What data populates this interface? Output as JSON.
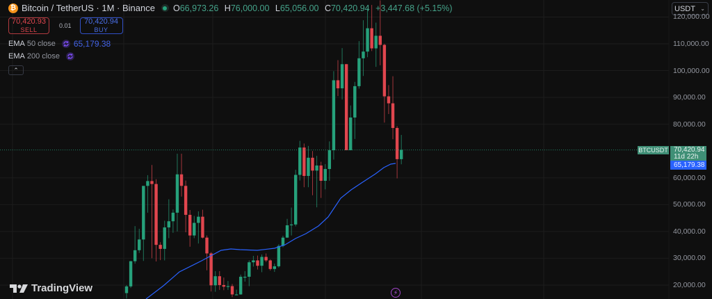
{
  "header": {
    "symbol_title": "Bitcoin / TetherUS · 1M · Binance",
    "coin_icon": "bitcoin-icon",
    "ohlc": {
      "open_label": "O",
      "open": "66,973.26",
      "high_label": "H",
      "high": "76,000.00",
      "low_label": "L",
      "low": "65,056.00",
      "close_label": "C",
      "close": "70,420.94",
      "change": "+3,447.68 (+5.15%)"
    }
  },
  "trade": {
    "sell_price": "70,420.93",
    "sell_label": "SELL",
    "spread": "0.01",
    "buy_price": "70,420.94",
    "buy_label": "BUY"
  },
  "indicators": [
    {
      "name": "EMA",
      "args": "50 close",
      "value": "65,179.38",
      "color": "#2962ff"
    },
    {
      "name": "EMA",
      "args": "200 close",
      "value": ""
    }
  ],
  "collapse_label": "^",
  "currency_select": {
    "value": "USDT"
  },
  "price_axis": {
    "labels": [
      {
        "text": "120,000.00",
        "price": 120000
      },
      {
        "text": "110,000.00",
        "price": 110000
      },
      {
        "text": "100,000.00",
        "price": 100000
      },
      {
        "text": "90,000.00",
        "price": 90000
      },
      {
        "text": "80,000.00",
        "price": 80000
      },
      {
        "text": "60,000.00",
        "price": 60000
      },
      {
        "text": "50,000.00",
        "price": 50000
      },
      {
        "text": "40,000.00",
        "price": 40000
      },
      {
        "text": "30,000.00",
        "price": 30000
      },
      {
        "text": "20,000.00",
        "price": 20000
      }
    ],
    "symbol_tag": "BTCUSDT",
    "last_price": "70,420.94",
    "countdown": "11d 22h",
    "ema_price": "65,179.38"
  },
  "branding": {
    "logo_text": "TradingView"
  },
  "colors": {
    "up": "#26a17b",
    "down": "#e0464e",
    "ema50": "#2962ff",
    "background": "#0f0f0f",
    "grid": "#1c1c1c"
  },
  "chart_data": {
    "type": "candlestick",
    "title": "Bitcoin / TetherUS · 1M · Binance",
    "interval": "1M",
    "ylabel": "USDT",
    "ylim": [
      15000,
      125000
    ],
    "grid": true,
    "last": {
      "open": 66973.26,
      "high": 76000.0,
      "low": 65056.0,
      "close": 70420.94,
      "change": 3447.68,
      "change_pct": 5.15
    },
    "ema50_last": 65179.38,
    "candles": [
      [
        17000,
        20000,
        15000,
        19500
      ],
      [
        19500,
        29000,
        18900,
        28900
      ],
      [
        28900,
        42000,
        28000,
        33000
      ],
      [
        33000,
        41000,
        32000,
        37000
      ],
      [
        37000,
        48000,
        29000,
        57000
      ],
      [
        57000,
        61000,
        47000,
        58800
      ],
      [
        58800,
        64800,
        30000,
        57700
      ],
      [
        57700,
        59500,
        28800,
        35000
      ],
      [
        35000,
        36000,
        29300,
        33500
      ],
      [
        33500,
        44000,
        29200,
        41500
      ],
      [
        41500,
        52000,
        37500,
        43800
      ],
      [
        43800,
        48200,
        39500,
        47000
      ],
      [
        47000,
        69000,
        40000,
        61300
      ],
      [
        61300,
        69000,
        53000,
        57000
      ],
      [
        57000,
        59000,
        39700,
        46200
      ],
      [
        46200,
        48000,
        34300,
        38500
      ],
      [
        38500,
        45800,
        37500,
        43200
      ],
      [
        43200,
        47500,
        35500,
        45500
      ],
      [
        45500,
        48100,
        37400,
        37700
      ],
      [
        37700,
        38500,
        25500,
        31800
      ],
      [
        31800,
        32300,
        17600,
        19900
      ],
      [
        19900,
        25200,
        17500,
        23300
      ],
      [
        23300,
        25200,
        18200,
        20000
      ],
      [
        20000,
        22800,
        18100,
        19400
      ],
      [
        19400,
        21500,
        18200,
        19600
      ],
      [
        19600,
        20400,
        15500,
        16500
      ],
      [
        16500,
        18300,
        16300,
        16500
      ],
      [
        16500,
        23900,
        16400,
        23100
      ],
      [
        23100,
        25200,
        21300,
        23100
      ],
      [
        23100,
        29200,
        19600,
        28500
      ],
      [
        28500,
        30900,
        26900,
        29200
      ],
      [
        29200,
        31000,
        25800,
        27200
      ],
      [
        27200,
        31400,
        24800,
        30500
      ],
      [
        30500,
        31800,
        28600,
        29200
      ],
      [
        29200,
        29600,
        25400,
        26000
      ],
      [
        26000,
        28000,
        24900,
        27000
      ],
      [
        27000,
        35200,
        26500,
        34600
      ],
      [
        34600,
        38400,
        34100,
        37700
      ],
      [
        37700,
        44700,
        37600,
        42300
      ],
      [
        42300,
        48900,
        38500,
        42600
      ],
      [
        42600,
        63000,
        41900,
        61100
      ],
      [
        61100,
        73800,
        59000,
        71300
      ],
      [
        71300,
        72800,
        56500,
        60700
      ],
      [
        60700,
        71900,
        56500,
        67500
      ],
      [
        67500,
        70000,
        53500,
        62700
      ],
      [
        62700,
        68200,
        49000,
        64600
      ],
      [
        64600,
        66000,
        52500,
        58900
      ],
      [
        58900,
        65100,
        55700,
        63300
      ],
      [
        63300,
        73600,
        58900,
        70300
      ],
      [
        70300,
        99800,
        66800,
        96400
      ],
      [
        96400,
        103900,
        90500,
        93400
      ],
      [
        93400,
        108400,
        89200,
        102400
      ],
      [
        102400,
        102500,
        89200,
        70300
      ],
      [
        70300,
        87000,
        76600,
        82500
      ],
      [
        82500,
        95800,
        74500,
        94200
      ],
      [
        94200,
        111000,
        93300,
        104600
      ],
      [
        104600,
        118800,
        98000,
        107100
      ],
      [
        107100,
        123200,
        105000,
        115800
      ],
      [
        115800,
        124500,
        107300,
        108300
      ],
      [
        108300,
        117900,
        101400,
        113000
      ],
      [
        113000,
        126200,
        102000,
        109600
      ],
      [
        109600,
        110000,
        80600,
        90400
      ],
      [
        90400,
        94600,
        83800,
        87800
      ],
      [
        87800,
        97900,
        74400,
        78600
      ],
      [
        78600,
        79300,
        59800,
        66970
      ],
      [
        66973,
        76000,
        65056,
        70421
      ]
    ]
  }
}
